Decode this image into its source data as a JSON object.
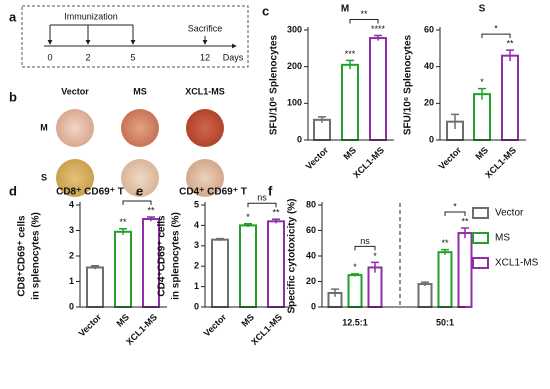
{
  "panel_labels": [
    "a",
    "b",
    "c",
    "d",
    "e",
    "f"
  ],
  "timeline": {
    "phase": "Immunization",
    "end_event": "Sacrifice",
    "days": [
      0,
      2,
      5,
      12
    ],
    "unit": "Days"
  },
  "wells": {
    "columns": [
      "Vector",
      "MS",
      "XCL1-MS"
    ],
    "rows": [
      "M",
      "S"
    ]
  },
  "chart_data": [
    {
      "type": "bar",
      "title": "M",
      "ylabel": "SFU/10⁶ Splenocytes",
      "categories": [
        "Vector",
        "MS",
        "XCL1-MS"
      ],
      "values": [
        55,
        205,
        278
      ],
      "errors": [
        8,
        12,
        7
      ],
      "colors": [
        "#6e6e6e",
        "#22a02a",
        "#8e2fa8"
      ],
      "star_labels": [
        null,
        "***",
        "****"
      ],
      "bracket_label": "**",
      "ylim": [
        0,
        300
      ],
      "yticks": [
        0,
        100,
        200,
        300
      ]
    },
    {
      "type": "bar",
      "title": "S",
      "ylabel": "SFU/10⁶ Splenocytes",
      "categories": [
        "Vector",
        "MS",
        "XCL1-MS"
      ],
      "values": [
        10,
        25,
        46
      ],
      "errors": [
        4,
        3,
        3
      ],
      "colors": [
        "#6e6e6e",
        "#22a02a",
        "#8e2fa8"
      ],
      "star_labels": [
        null,
        "*",
        "**"
      ],
      "bracket_label": "*",
      "ylim": [
        0,
        60
      ],
      "yticks": [
        0,
        20,
        40,
        60
      ]
    },
    {
      "type": "bar",
      "title": "CD8⁺ CD69⁺ T",
      "ylabel": [
        "CD8⁺CD69⁺ cells",
        "in splenocytes (%)"
      ],
      "categories": [
        "Vector",
        "MS",
        "XCL1-MS"
      ],
      "values": [
        1.55,
        2.95,
        3.45
      ],
      "errors": [
        0.07,
        0.12,
        0.08
      ],
      "colors": [
        "#6e6e6e",
        "#22a02a",
        "#8e2fa8"
      ],
      "star_labels": [
        null,
        "**",
        "**"
      ],
      "bracket_label": "*",
      "ylim": [
        0,
        4
      ],
      "yticks": [
        0,
        1,
        2,
        3,
        4
      ]
    },
    {
      "type": "bar",
      "title": "CD4⁺ CD69⁺ T",
      "ylabel": [
        "CD4⁺CD69⁺ cells",
        "in splenocytes (%)"
      ],
      "categories": [
        "Vector",
        "MS",
        "XCL1-MS"
      ],
      "values": [
        3.3,
        4.0,
        4.2
      ],
      "errors": [
        0.05,
        0.08,
        0.1
      ],
      "colors": [
        "#6e6e6e",
        "#22a02a",
        "#8e2fa8"
      ],
      "star_labels": [
        null,
        "*",
        "**"
      ],
      "bracket_label": "ns",
      "ylim": [
        0,
        5
      ],
      "yticks": [
        0,
        1,
        2,
        3,
        4,
        5
      ]
    },
    {
      "type": "grouped_bar",
      "ylabel": "Specific cytotoxicity (%)",
      "categories": [
        "12.5:1",
        "50:1"
      ],
      "series": [
        {
          "name": "Vector",
          "color": "#6e6e6e",
          "values": [
            11,
            18
          ],
          "errors": [
            3,
            1.5
          ]
        },
        {
          "name": "MS",
          "color": "#22a02a",
          "values": [
            25,
            43
          ],
          "errors": [
            1,
            2
          ],
          "star_labels": [
            "*",
            "**"
          ]
        },
        {
          "name": "XCL1-MS",
          "color": "#8e2fa8",
          "values": [
            31,
            58
          ],
          "errors": [
            4,
            4
          ],
          "star_labels": [
            "*",
            "**"
          ]
        }
      ],
      "bracket_labels": [
        "ns",
        "*"
      ],
      "ylim": [
        0,
        80
      ],
      "yticks": [
        0,
        20,
        40,
        60,
        80
      ],
      "legend": "right"
    }
  ]
}
